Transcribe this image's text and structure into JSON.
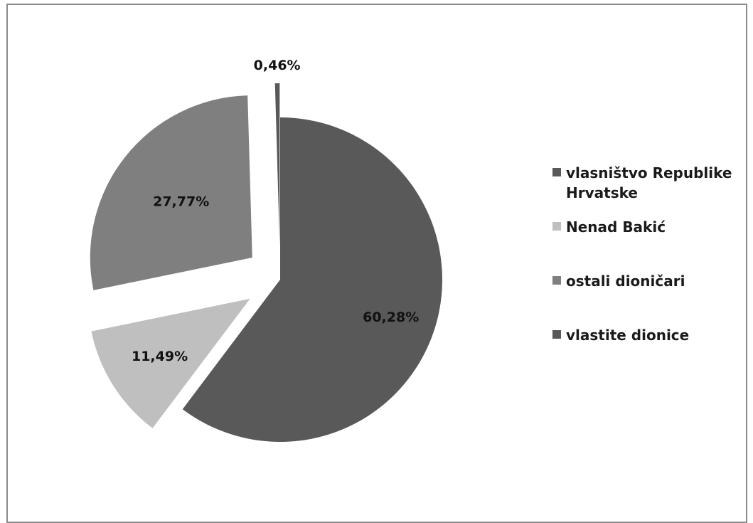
{
  "chart_data": {
    "type": "pie",
    "exploded": true,
    "slices": [
      {
        "name": "vlasništvo Republike Hrvatske",
        "value": 60.28,
        "label": "60,28%",
        "color": "#595959"
      },
      {
        "name": "Nenad Bakić",
        "value": 11.49,
        "label": "11,49%",
        "color": "#bfbfbf"
      },
      {
        "name": "ostali dioničari",
        "value": 27.77,
        "label": "27,77%",
        "color": "#7f7f7f"
      },
      {
        "name": "vlastite dionice",
        "value": 0.46,
        "label": "0,46%",
        "color": "#595959"
      }
    ],
    "legend_position": "right"
  },
  "legend": [
    {
      "label": "vlasništvo Republike Hrvatske",
      "color": "#595959"
    },
    {
      "label": "Nenad Bakić",
      "color": "#bfbfbf"
    },
    {
      "label": "ostali dioničari",
      "color": "#7f7f7f"
    },
    {
      "label": "vlastite dionice",
      "color": "#595959"
    }
  ]
}
